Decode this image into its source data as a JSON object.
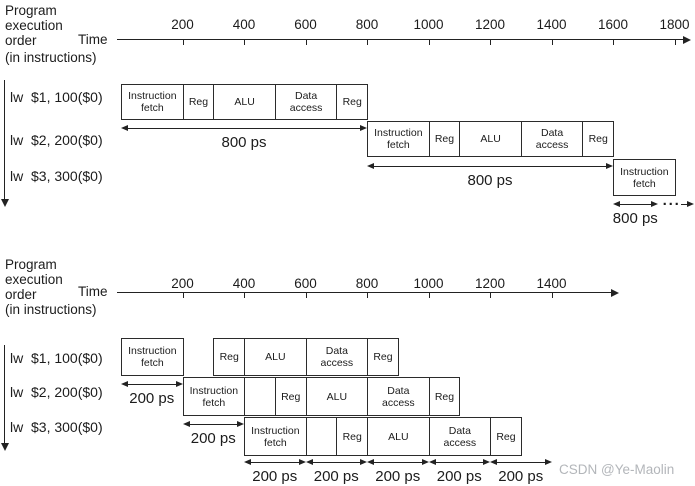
{
  "watermark": "CSDN @Ye-Maolin",
  "charts": [
    {
      "name": "nonpipelined-execution",
      "title_lines": [
        "Program",
        "execution",
        "order",
        "(in instructions)"
      ],
      "time_label": "Time",
      "axis_ticks": [
        200,
        400,
        600,
        800,
        1000,
        1200,
        1400,
        1600,
        1800
      ],
      "rows": [
        {
          "label": "lw  $1, 100($0)",
          "stages": [
            {
              "name": "Instruction fetch",
              "start": 0,
              "end": 200
            },
            {
              "name": "Reg",
              "start": 200,
              "end": 300
            },
            {
              "name": "ALU",
              "start": 300,
              "end": 500
            },
            {
              "name": "Data access",
              "start": 500,
              "end": 700
            },
            {
              "name": "Reg",
              "start": 700,
              "end": 800
            }
          ]
        },
        {
          "label": "lw  $2, 200($0)",
          "stages": [
            {
              "name": "Instruction fetch",
              "start": 800,
              "end": 1000
            },
            {
              "name": "Reg",
              "start": 1000,
              "end": 1100
            },
            {
              "name": "ALU",
              "start": 1100,
              "end": 1300
            },
            {
              "name": "Data access",
              "start": 1300,
              "end": 1500
            },
            {
              "name": "Reg",
              "start": 1500,
              "end": 1600
            }
          ]
        },
        {
          "label": "lw  $3, 300($0)",
          "stages": [
            {
              "name": "Instruction fetch",
              "start": 1600,
              "end": 1800
            }
          ]
        }
      ],
      "duration_annotations": [
        {
          "label": "800 ps",
          "start": 0,
          "end": 800,
          "tier": 0
        },
        {
          "label": "800 ps",
          "start": 800,
          "end": 1600,
          "tier": 1
        },
        {
          "label": "800 ps",
          "start": 1600,
          "end": 1745,
          "tier": 2,
          "ellipsis": "···"
        }
      ]
    },
    {
      "name": "pipelined-execution",
      "title_lines": [
        "Program",
        "execution",
        "order",
        "(in instructions)"
      ],
      "time_label": "Time",
      "axis_ticks": [
        200,
        400,
        600,
        800,
        1000,
        1200,
        1400
      ],
      "rows": [
        {
          "label": "lw  $1, 100($0)",
          "stages": [
            {
              "name": "Instruction fetch",
              "start": 0,
              "end": 200
            },
            {
              "name": "Reg",
              "start": 300,
              "end": 400
            },
            {
              "name": "ALU",
              "start": 400,
              "end": 600
            },
            {
              "name": "Data access",
              "start": 600,
              "end": 800
            },
            {
              "name": "Reg",
              "start": 800,
              "end": 900
            }
          ]
        },
        {
          "label": "lw  $2, 200($0)",
          "stages": [
            {
              "name": "Instruction fetch",
              "start": 200,
              "end": 400
            },
            {
              "name": "",
              "start": 400,
              "end": 500
            },
            {
              "name": "Reg",
              "start": 500,
              "end": 600
            },
            {
              "name": "ALU",
              "start": 600,
              "end": 800
            },
            {
              "name": "Data access",
              "start": 800,
              "end": 1000
            },
            {
              "name": "Reg",
              "start": 1000,
              "end": 1100
            }
          ]
        },
        {
          "label": "lw  $3, 300($0)",
          "stages": [
            {
              "name": "Instruction fetch",
              "start": 400,
              "end": 600
            },
            {
              "name": "",
              "start": 600,
              "end": 700
            },
            {
              "name": "Reg",
              "start": 700,
              "end": 800
            },
            {
              "name": "ALU",
              "start": 800,
              "end": 1000
            },
            {
              "name": "Data access",
              "start": 1000,
              "end": 1200
            },
            {
              "name": "Reg",
              "start": 1200,
              "end": 1300
            }
          ]
        }
      ],
      "duration_annotations": [
        {
          "label": "200 ps",
          "start": 0,
          "end": 200,
          "tier": 0
        },
        {
          "label": "200 ps",
          "start": 200,
          "end": 400,
          "tier": 1
        },
        {
          "label": "200 ps",
          "start": 400,
          "end": 600,
          "tier": 2
        },
        {
          "label": "200 ps",
          "start": 600,
          "end": 800,
          "tier": 2
        },
        {
          "label": "200 ps",
          "start": 800,
          "end": 1000,
          "tier": 2
        },
        {
          "label": "200 ps",
          "start": 1000,
          "end": 1200,
          "tier": 2
        },
        {
          "label": "200 ps",
          "start": 1200,
          "end": 1400,
          "tier": 2
        }
      ]
    }
  ]
}
